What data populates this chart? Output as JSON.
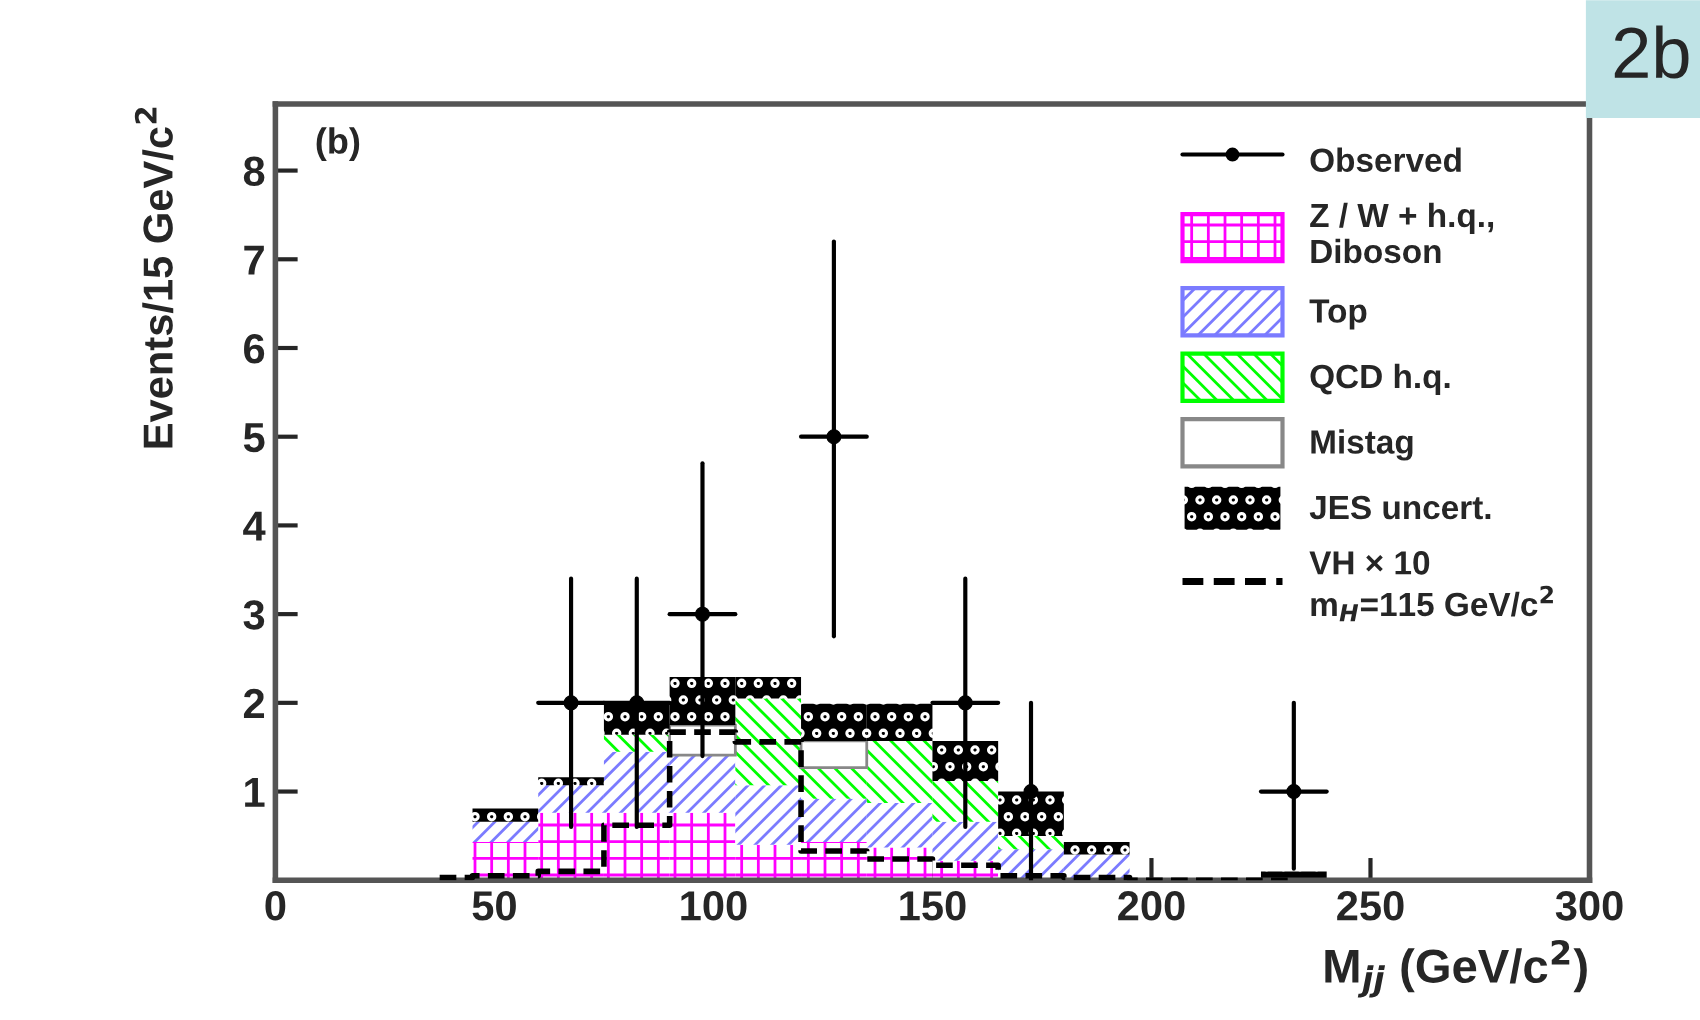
{
  "chart_data": {
    "type": "bar",
    "xlabel": "M$_{jj}$ (GeV/c$^{2}$)",
    "ylabel": "Events/15 GeV/c$^{2}$",
    "x": [
      37.5,
      52.5,
      67.5,
      82.5,
      97.5,
      112.5,
      127.5,
      142.5,
      157.5,
      172.5,
      187.5,
      202.5,
      217.5,
      232.5
    ],
    "stacked": true,
    "series": [
      {
        "name": "Observed",
        "type": "scatter",
        "color": "#000000",
        "marker": "circle",
        "x": [
          67.5,
          82.5,
          97.5,
          127.5,
          157.5,
          172.5,
          232.5
        ],
        "values": [
          2,
          2,
          3,
          5,
          2,
          1,
          1
        ],
        "errors": [
          [
            0.6,
            3.4
          ],
          [
            0.6,
            3.4
          ],
          [
            1.4,
            4.7
          ],
          [
            2.75,
            7.2
          ],
          [
            0.6,
            3.4
          ],
          [
            0,
            2
          ],
          [
            0.13,
            2
          ]
        ],
        "xerrors": [
          7.5,
          7.5,
          7.5,
          7.5,
          7.5,
          null,
          7.5
        ]
      },
      {
        "name": "Z / W + h.q.,\nDiboson",
        "color": "#ff00ff",
        "values": [
          0,
          0.43,
          0.76,
          0.76,
          0.76,
          0.4,
          0.43,
          0.37,
          0.22,
          0,
          0,
          0,
          0,
          0
        ]
      },
      {
        "name": "Top",
        "color": "#7b7bff",
        "values": [
          0,
          0.23,
          0.31,
          0.69,
          0.65,
          0.67,
          0.49,
          0.5,
          0.44,
          0.35,
          0.29,
          0,
          0,
          0
        ]
      },
      {
        "name": "QCD h.q.",
        "color": "#00ff00",
        "values": [
          0,
          0,
          0,
          0.19,
          0,
          0.98,
          0.35,
          0.7,
          0.46,
          0.15,
          0,
          0,
          0,
          0
        ]
      },
      {
        "name": "Mistag",
        "color": "#ffffff",
        "values": [
          0,
          0,
          0,
          0,
          0.34,
          0,
          0.3,
          0,
          0,
          0,
          0,
          0,
          0,
          0
        ]
      },
      {
        "name": "JES uncert.",
        "color": "#000000",
        "values": [
          0,
          0.15,
          0.09,
          0.35,
          0.54,
          0.24,
          0.42,
          0.42,
          0.45,
          0.5,
          0.14,
          0,
          0,
          0.1
        ]
      },
      {
        "name": "VH × 10\nm$_{H}$=115 GeV/c$^{2}$",
        "type": "step",
        "color": "#000000",
        "line_style": "dashed",
        "values": [
          0.03,
          0.05,
          0.1,
          0.62,
          1.67,
          1.56,
          0.33,
          0.24,
          0.17,
          0.05,
          0.03,
          0,
          0,
          0
        ]
      }
    ],
    "xlim": [
      0,
      300
    ],
    "ylim": [
      0,
      8.75
    ],
    "xticks": [
      0,
      50,
      100,
      150,
      200,
      250,
      300
    ],
    "yticks": [
      1,
      2,
      3,
      4,
      5,
      6,
      7,
      8
    ],
    "legend": "top right",
    "annotations": [
      "(b)",
      "2b"
    ]
  }
}
